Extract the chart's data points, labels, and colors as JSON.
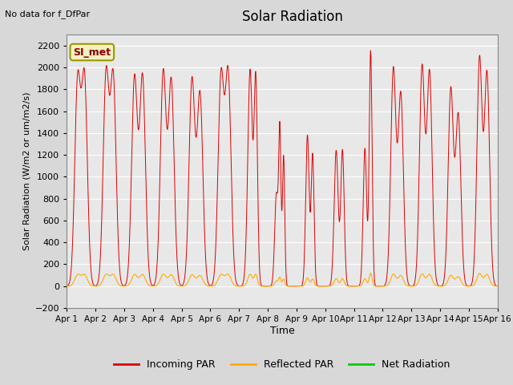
{
  "title": "Solar Radiation",
  "top_left_text": "No data for f_DfPar",
  "ylabel": "Solar Radiation (W/m2 or um/m2/s)",
  "xlabel": "Time",
  "ylim": [
    -200,
    2300
  ],
  "xlim": [
    0,
    15
  ],
  "yticks": [
    -200,
    0,
    200,
    400,
    600,
    800,
    1000,
    1200,
    1400,
    1600,
    1800,
    2000,
    2200
  ],
  "xtick_labels": [
    "Apr 1",
    "Apr 2",
    "Apr 3",
    "Apr 4",
    "Apr 5",
    "Apr 6",
    "Apr 7",
    "Apr 8",
    "Apr 9",
    "Apr 10",
    "Apr 11",
    "Apr 12",
    "Apr 13",
    "Apr 14",
    "Apr 15",
    "Apr 16"
  ],
  "legend_entries": [
    "Incoming PAR",
    "Reflected PAR",
    "Net Radiation"
  ],
  "line_colors": [
    "#dd0000",
    "#ffaa00",
    "#00cc00"
  ],
  "bg_color": "#e8e8e8",
  "grid_color": "#ffffff",
  "annotation_label": "SI_met",
  "fig_bg": "#d8d8d8"
}
